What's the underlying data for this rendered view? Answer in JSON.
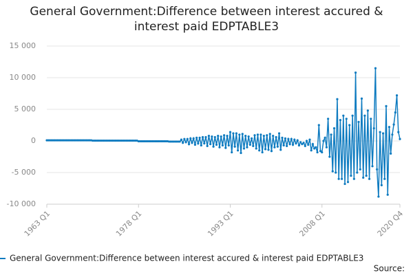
{
  "chart_data": {
    "type": "line",
    "title": "General Government:Difference between interest accured & interest paid EDPTABLE3",
    "source": "Source:",
    "categories": [
      "1963 Q1",
      null,
      null,
      null,
      null,
      null,
      null,
      null,
      null,
      null,
      null,
      null,
      null,
      null,
      null,
      null,
      null,
      null,
      null,
      null,
      null,
      null,
      null,
      null,
      null,
      null,
      null,
      null,
      null,
      null,
      null,
      null,
      null,
      null,
      null,
      null,
      null,
      null,
      null,
      null,
      null,
      null,
      null,
      null,
      null,
      null,
      null,
      null,
      null,
      null,
      null,
      null,
      null,
      null,
      null,
      null,
      null,
      null,
      null,
      null,
      "1978 Q1",
      null,
      null,
      null,
      null,
      null,
      null,
      null,
      null,
      null,
      null,
      null,
      null,
      null,
      null,
      null,
      null,
      null,
      null,
      null,
      null,
      null,
      null,
      null,
      null,
      null,
      null,
      null,
      null,
      null,
      null,
      null,
      null,
      null,
      null,
      null,
      null,
      null,
      null,
      null,
      null,
      null,
      null,
      null,
      null,
      null,
      null,
      null,
      null,
      null,
      null,
      null,
      null,
      null,
      null,
      null,
      null,
      null,
      null,
      null,
      "1993 Q1",
      null,
      null,
      null,
      null,
      null,
      null,
      null,
      null,
      null,
      null,
      null,
      null,
      null,
      null,
      null,
      null,
      null,
      null,
      null,
      null,
      null,
      null,
      null,
      null,
      null,
      null,
      null,
      null,
      null,
      null,
      null,
      null,
      null,
      null,
      null,
      null,
      null,
      null,
      null,
      null,
      null,
      null,
      null,
      null,
      null,
      null,
      null,
      null,
      null,
      null,
      null,
      null,
      null,
      null,
      null,
      null,
      null,
      null,
      null,
      "2008 Q1",
      null,
      null,
      null,
      null,
      null,
      null,
      null,
      null,
      null,
      null,
      null,
      null,
      null,
      null,
      null,
      null,
      null,
      null,
      null,
      null,
      null,
      null,
      null,
      null,
      null,
      null,
      null,
      null,
      null,
      null,
      null,
      null,
      null,
      null,
      null,
      null,
      null,
      null,
      null,
      null,
      null,
      null,
      null,
      null,
      null,
      null,
      null,
      null,
      null,
      null,
      "2020 Q4"
    ],
    "series": [
      {
        "name": "General Government:Difference between interest accured & interest paid EDPTABLE3",
        "color": "#0e7bc0",
        "values": [
          100,
          100,
          100,
          100,
          100,
          100,
          100,
          100,
          100,
          100,
          100,
          100,
          100,
          100,
          100,
          100,
          100,
          100,
          100,
          100,
          100,
          100,
          100,
          100,
          100,
          100,
          100,
          100,
          100,
          100,
          50,
          50,
          50,
          50,
          50,
          50,
          50,
          50,
          50,
          50,
          50,
          50,
          50,
          50,
          50,
          50,
          50,
          50,
          50,
          50,
          50,
          50,
          50,
          50,
          50,
          50,
          50,
          50,
          50,
          50,
          -50,
          -50,
          -50,
          -50,
          -50,
          -50,
          -50,
          -50,
          -50,
          -50,
          -50,
          -50,
          -50,
          -50,
          -50,
          -50,
          -50,
          -50,
          -50,
          -50,
          -100,
          -100,
          -100,
          -100,
          -100,
          -100,
          -100,
          -100,
          200,
          -300,
          300,
          -200,
          300,
          -500,
          400,
          -300,
          400,
          -600,
          500,
          -400,
          500,
          -700,
          600,
          -400,
          600,
          -800,
          800,
          -500,
          700,
          -900,
          600,
          -600,
          800,
          -1000,
          700,
          -700,
          900,
          -1100,
          800,
          -700,
          1400,
          -1800,
          1200,
          -900,
          1200,
          -1500,
          1000,
          -1900,
          1100,
          -1200,
          800,
          -1000,
          700,
          -600,
          400,
          -800,
          900,
          -1200,
          1000,
          -1500,
          1000,
          -1800,
          800,
          -1300,
          900,
          -1400,
          1100,
          -1600,
          800,
          -1000,
          600,
          -900,
          1200,
          -1400,
          500,
          -700,
          400,
          -800,
          300,
          -500,
          300,
          -600,
          200,
          -400,
          100,
          -700,
          -200,
          -500,
          -300,
          -800,
          0,
          -600,
          200,
          -1500,
          -500,
          -1200,
          -1000,
          -1800,
          2500,
          -1600,
          -1800,
          0,
          500,
          -1000,
          3500,
          -2500,
          1000,
          -4800,
          2000,
          -5000,
          6600,
          -6000,
          3300,
          -6000,
          4000,
          -6800,
          3500,
          -6500,
          2500,
          -5500,
          4000,
          -6000,
          10800,
          -5000,
          3000,
          -4500,
          6700,
          -5800,
          4000,
          -5500,
          4800,
          -6000,
          3500,
          -4000,
          2000,
          11500,
          -4500,
          -8800,
          1400,
          -7000,
          1200,
          -6000,
          5500,
          -8500,
          2200,
          -2000,
          1000,
          2600,
          4500,
          7200,
          1400,
          300
        ]
      }
    ],
    "ylim": [
      -10000,
      15000
    ],
    "yticks": [
      {
        "value": -10000,
        "label": "-10 000"
      },
      {
        "value": -5000,
        "label": "-5 000"
      },
      0,
      {
        "value": 5000,
        "label": "5 000"
      },
      {
        "value": 10000,
        "label": "10 000"
      },
      {
        "value": 15000,
        "label": "15 000"
      }
    ],
    "grid": true
  }
}
